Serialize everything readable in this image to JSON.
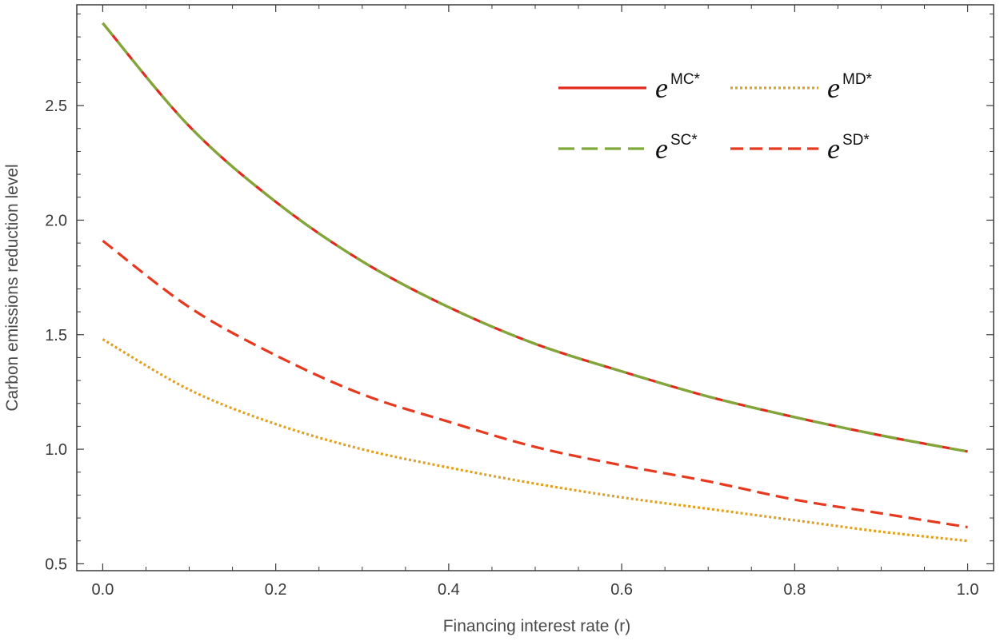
{
  "chart_data": {
    "type": "line",
    "xlabel": "Financing interest rate (r)",
    "ylabel": "Carbon emissions reduction level",
    "xlim": [
      -0.03,
      1.03
    ],
    "ylim": [
      0.47,
      2.94
    ],
    "x_ticks": [
      0.0,
      0.2,
      0.4,
      0.6,
      0.8,
      1.0
    ],
    "x_tick_labels": [
      "0.0",
      "0.2",
      "0.4",
      "0.6",
      "0.8",
      "1.0"
    ],
    "y_ticks": [
      0.5,
      1.0,
      1.5,
      2.0,
      2.5
    ],
    "y_tick_labels": [
      "0.5",
      "1.0",
      "1.5",
      "2.0",
      "2.5"
    ],
    "grid": false,
    "legend_position": "top-right",
    "x": [
      0.0,
      0.1,
      0.2,
      0.3,
      0.4,
      0.5,
      0.6,
      0.7,
      0.8,
      0.9,
      1.0
    ],
    "series": [
      {
        "name": "e",
        "name_sup": "MC*",
        "color": "#e0291f",
        "dash": "solid",
        "values": [
          2.86,
          2.41,
          2.08,
          1.82,
          1.62,
          1.46,
          1.34,
          1.23,
          1.14,
          1.06,
          0.99
        ]
      },
      {
        "name": "e",
        "name_sup": "MD*",
        "color": "#e0a020",
        "dash": "dotted",
        "values": [
          1.48,
          1.26,
          1.11,
          1.0,
          0.92,
          0.85,
          0.79,
          0.74,
          0.69,
          0.64,
          0.6
        ]
      },
      {
        "name": "e",
        "name_sup": "SC*",
        "color": "#7fa83a",
        "dash": "longdash",
        "values": [
          2.86,
          2.41,
          2.08,
          1.82,
          1.62,
          1.46,
          1.34,
          1.23,
          1.14,
          1.06,
          0.99
        ]
      },
      {
        "name": "e",
        "name_sup": "SD*",
        "color": "#e63a20",
        "dash": "dashed",
        "values": [
          1.91,
          1.62,
          1.41,
          1.24,
          1.12,
          1.01,
          0.93,
          0.86,
          0.78,
          0.72,
          0.66
        ]
      }
    ]
  }
}
